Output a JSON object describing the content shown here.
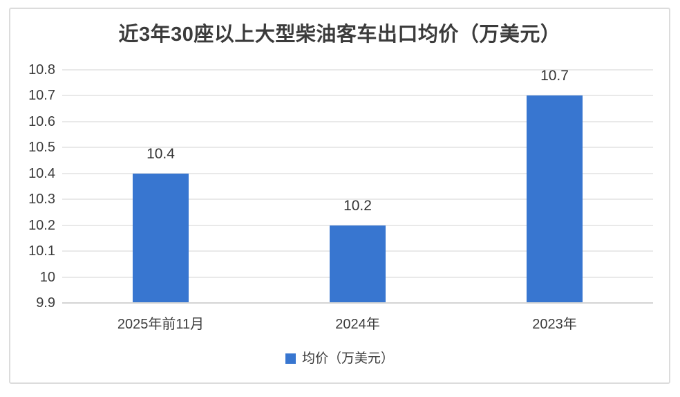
{
  "chart_data": {
    "type": "bar",
    "title": "近3年30座以上大型柴油客车出口均价（万美元）",
    "categories": [
      "2025年前11月",
      "2024年",
      "2023年"
    ],
    "values": [
      10.4,
      10.2,
      10.7
    ],
    "value_labels": [
      "10.4",
      "10.2",
      "10.7"
    ],
    "series_name": "均价（万美元）",
    "ylim": [
      9.9,
      10.8
    ],
    "ytick_step": 0.1,
    "ytick_labels": [
      "9.9",
      "10",
      "10.1",
      "10.2",
      "10.3",
      "10.4",
      "10.5",
      "10.6",
      "10.7",
      "10.8"
    ],
    "grid": true,
    "legend_position": "bottom"
  },
  "colors": {
    "bar": "#3876D0",
    "gridline": "#E9E9E9",
    "axis_line": "#D4D4D4",
    "text": "#3B3B3B",
    "frame_border": "#DCDCDC",
    "background": "#FFFFFF"
  }
}
